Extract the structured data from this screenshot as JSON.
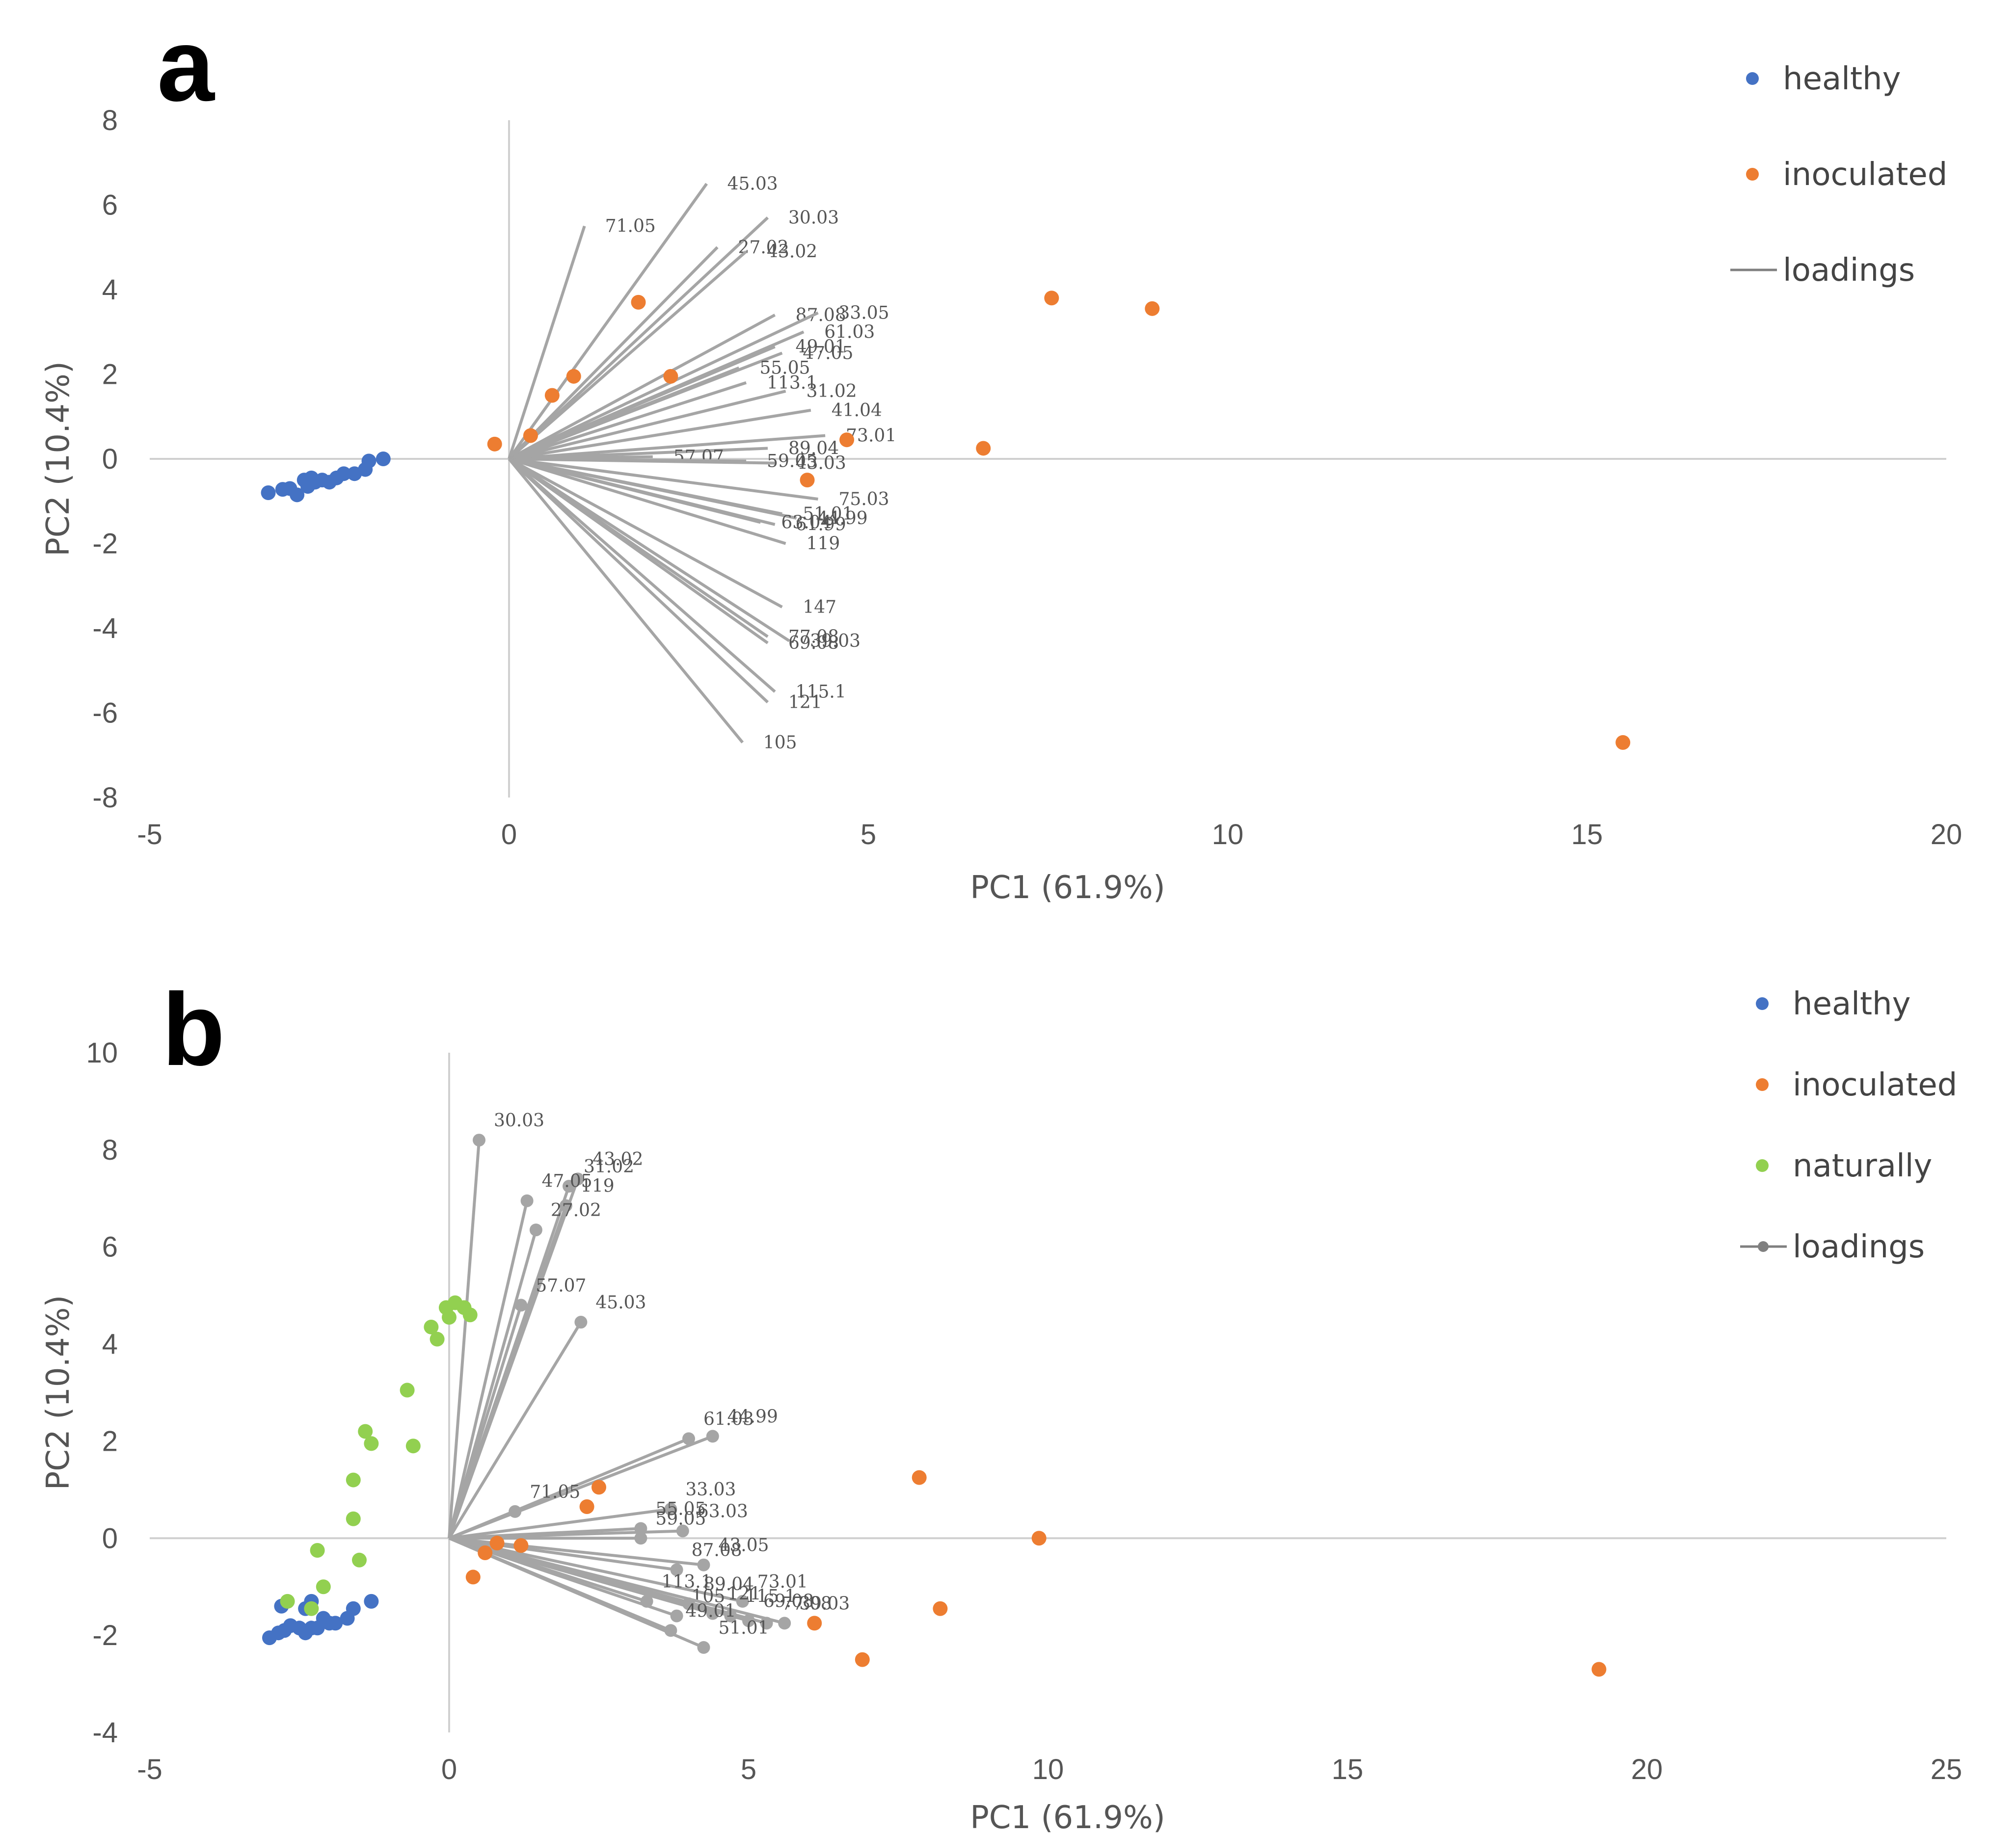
{
  "chart_data": [
    {
      "type": "scatter",
      "panel": "a",
      "xlabel": "PC1 (61.9%)",
      "ylabel": "PC2 (10.4%)",
      "xlim": [
        -5,
        20
      ],
      "ylim": [
        -8,
        8
      ],
      "xticks": [
        -5,
        0,
        5,
        10,
        15,
        20
      ],
      "yticks": [
        -8,
        -6,
        -4,
        -2,
        0,
        2,
        4,
        6,
        8
      ],
      "legend": {
        "placement": "top-right",
        "entries": [
          "healthy",
          "inoculated",
          "loadings"
        ]
      },
      "colors": {
        "healthy": "#4472C4",
        "inoculated": "#ED7D31",
        "loadings": "#A5A5A5"
      },
      "series": [
        {
          "name": "healthy",
          "points": [
            [
              -3.35,
              -0.8
            ],
            [
              -3.15,
              -0.72
            ],
            [
              -3.05,
              -0.7
            ],
            [
              -2.95,
              -0.85
            ],
            [
              -2.85,
              -0.5
            ],
            [
              -2.8,
              -0.65
            ],
            [
              -2.75,
              -0.45
            ],
            [
              -2.7,
              -0.55
            ],
            [
              -2.6,
              -0.5
            ],
            [
              -2.5,
              -0.55
            ],
            [
              -2.4,
              -0.45
            ],
            [
              -2.3,
              -0.35
            ],
            [
              -2.15,
              -0.35
            ],
            [
              -2.0,
              -0.25
            ],
            [
              -1.95,
              -0.05
            ],
            [
              -1.75,
              0.0
            ]
          ]
        },
        {
          "name": "inoculated",
          "points": [
            [
              -0.2,
              0.35
            ],
            [
              0.3,
              0.55
            ],
            [
              0.6,
              1.5
            ],
            [
              0.9,
              1.95
            ],
            [
              1.8,
              3.7
            ],
            [
              2.25,
              1.95
            ],
            [
              4.15,
              -0.5
            ],
            [
              4.7,
              0.45
            ],
            [
              6.6,
              0.25
            ],
            [
              7.55,
              3.8
            ],
            [
              8.95,
              3.55
            ],
            [
              15.5,
              -6.7
            ]
          ]
        },
        {
          "name": "loadings",
          "vectors": [
            {
              "label": "45.03",
              "x": 2.75,
              "y": 6.5
            },
            {
              "label": "30.03",
              "x": 3.6,
              "y": 5.7
            },
            {
              "label": "71.05",
              "x": 1.05,
              "y": 5.5
            },
            {
              "label": "27.02",
              "x": 2.9,
              "y": 5.0
            },
            {
              "label": "43.02",
              "x": 3.3,
              "y": 4.9
            },
            {
              "label": "87.08",
              "x": 3.7,
              "y": 3.4
            },
            {
              "label": "33.05",
              "x": 4.3,
              "y": 3.45
            },
            {
              "label": "61.03",
              "x": 4.1,
              "y": 3.0
            },
            {
              "label": "49.01",
              "x": 3.7,
              "y": 2.65
            },
            {
              "label": "47.05",
              "x": 3.8,
              "y": 2.5
            },
            {
              "label": "55.05",
              "x": 3.2,
              "y": 2.15
            },
            {
              "label": "113.1",
              "x": 3.3,
              "y": 1.8
            },
            {
              "label": "31.02",
              "x": 3.85,
              "y": 1.6
            },
            {
              "label": "41.04",
              "x": 4.2,
              "y": 1.15
            },
            {
              "label": "73.01",
              "x": 4.4,
              "y": 0.55
            },
            {
              "label": "89.04",
              "x": 3.6,
              "y": 0.25
            },
            {
              "label": "57.07",
              "x": 2.0,
              "y": 0.05
            },
            {
              "label": "59.05",
              "x": 3.3,
              "y": -0.05
            },
            {
              "label": "43.03",
              "x": 3.7,
              "y": -0.1
            },
            {
              "label": "75.03",
              "x": 4.3,
              "y": -0.95
            },
            {
              "label": "51.01",
              "x": 3.8,
              "y": -1.3
            },
            {
              "label": "44.99",
              "x": 4.0,
              "y": -1.4
            },
            {
              "label": "63.04",
              "x": 3.5,
              "y": -1.5
            },
            {
              "label": "61.99",
              "x": 3.7,
              "y": -1.55
            },
            {
              "label": "119",
              "x": 3.85,
              "y": -2.0
            },
            {
              "label": "147",
              "x": 3.8,
              "y": -3.5
            },
            {
              "label": "77.08",
              "x": 3.6,
              "y": -4.2
            },
            {
              "label": "69.08",
              "x": 3.6,
              "y": -4.35
            },
            {
              "label": "39.03",
              "x": 3.9,
              "y": -4.3
            },
            {
              "label": "115.1",
              "x": 3.7,
              "y": -5.5
            },
            {
              "label": "121",
              "x": 3.6,
              "y": -5.75
            },
            {
              "label": "105",
              "x": 3.25,
              "y": -6.7
            }
          ]
        }
      ]
    },
    {
      "type": "scatter",
      "panel": "b",
      "xlabel": "PC1 (61.9%)",
      "ylabel": "PC2 (10.4%)",
      "xlim": [
        -5,
        25
      ],
      "ylim": [
        -4,
        10
      ],
      "xticks": [
        -5,
        0,
        5,
        10,
        15,
        20,
        25
      ],
      "yticks": [
        -4,
        -2,
        0,
        2,
        4,
        6,
        8,
        10
      ],
      "legend": {
        "placement": "top-right",
        "entries": [
          "healthy",
          "inoculated",
          "naturally",
          "loadings"
        ]
      },
      "colors": {
        "healthy": "#4472C4",
        "inoculated": "#ED7D31",
        "naturally": "#92D050",
        "loadings": "#A5A5A5"
      },
      "series": [
        {
          "name": "healthy",
          "points": [
            [
              -3.0,
              -2.05
            ],
            [
              -2.85,
              -1.95
            ],
            [
              -2.75,
              -1.9
            ],
            [
              -2.65,
              -1.8
            ],
            [
              -2.5,
              -1.85
            ],
            [
              -2.4,
              -1.95
            ],
            [
              -2.3,
              -1.85
            ],
            [
              -2.2,
              -1.85
            ],
            [
              -2.1,
              -1.65
            ],
            [
              -2.0,
              -1.75
            ],
            [
              -1.9,
              -1.75
            ],
            [
              -1.7,
              -1.65
            ],
            [
              -1.6,
              -1.45
            ],
            [
              -1.3,
              -1.3
            ],
            [
              -2.8,
              -1.4
            ],
            [
              -2.3,
              -1.3
            ],
            [
              -2.4,
              -1.45
            ]
          ]
        },
        {
          "name": "inoculated",
          "points": [
            [
              0.4,
              -0.8
            ],
            [
              0.6,
              -0.3
            ],
            [
              0.8,
              -0.1
            ],
            [
              1.2,
              -0.15
            ],
            [
              2.3,
              0.65
            ],
            [
              2.5,
              1.05
            ],
            [
              6.1,
              -1.75
            ],
            [
              6.9,
              -2.5
            ],
            [
              7.85,
              1.25
            ],
            [
              8.2,
              -1.45
            ],
            [
              9.85,
              0.0
            ],
            [
              19.2,
              -2.7
            ]
          ]
        },
        {
          "name": "naturally",
          "points": [
            [
              -2.7,
              -1.3
            ],
            [
              -2.3,
              -1.45
            ],
            [
              -2.1,
              -1.0
            ],
            [
              -2.2,
              -0.25
            ],
            [
              -1.5,
              -0.45
            ],
            [
              -1.6,
              0.4
            ],
            [
              -1.6,
              1.2
            ],
            [
              -1.4,
              2.2
            ],
            [
              -1.3,
              1.95
            ],
            [
              -0.7,
              3.05
            ],
            [
              -0.6,
              1.9
            ],
            [
              -0.3,
              4.35
            ],
            [
              -0.2,
              4.1
            ],
            [
              -0.05,
              4.75
            ],
            [
              0.0,
              4.55
            ],
            [
              0.1,
              4.85
            ],
            [
              0.25,
              4.75
            ],
            [
              0.35,
              4.6
            ]
          ]
        },
        {
          "name": "loadings",
          "vectors": [
            {
              "label": "30.03",
              "x": 0.5,
              "y": 8.2
            },
            {
              "label": "43.02",
              "x": 2.15,
              "y": 7.4
            },
            {
              "label": "31.02",
              "x": 2.0,
              "y": 7.25
            },
            {
              "label": "47.05",
              "x": 1.3,
              "y": 6.95
            },
            {
              "label": "119",
              "x": 1.95,
              "y": 6.85
            },
            {
              "label": "27.02",
              "x": 1.45,
              "y": 6.35
            },
            {
              "label": "57.07",
              "x": 1.2,
              "y": 4.8
            },
            {
              "label": "45.03",
              "x": 2.2,
              "y": 4.45
            },
            {
              "label": "61.03",
              "x": 4.0,
              "y": 2.05
            },
            {
              "label": "44.99",
              "x": 4.4,
              "y": 2.1
            },
            {
              "label": "33.03",
              "x": 3.7,
              "y": 0.6
            },
            {
              "label": "71.05",
              "x": 1.1,
              "y": 0.55
            },
            {
              "label": "55.05",
              "x": 3.2,
              "y": 0.2
            },
            {
              "label": "63.03",
              "x": 3.9,
              "y": 0.15
            },
            {
              "label": "59.05",
              "x": 3.2,
              "y": 0.0
            },
            {
              "label": "43.05",
              "x": 4.25,
              "y": -0.55
            },
            {
              "label": "87.08",
              "x": 3.8,
              "y": -0.65
            },
            {
              "label": "73.01",
              "x": 4.9,
              "y": -1.3
            },
            {
              "label": "113.1",
              "x": 3.3,
              "y": -1.3
            },
            {
              "label": "89.04",
              "x": 4.0,
              "y": -1.35
            },
            {
              "label": "105",
              "x": 3.8,
              "y": -1.6
            },
            {
              "label": "121",
              "x": 4.4,
              "y": -1.55
            },
            {
              "label": "115.1",
              "x": 4.7,
              "y": -1.6
            },
            {
              "label": "69.08",
              "x": 5.0,
              "y": -1.7
            },
            {
              "label": "77.08",
              "x": 5.3,
              "y": -1.75
            },
            {
              "label": "39.03",
              "x": 5.6,
              "y": -1.75
            },
            {
              "label": "49.01",
              "x": 3.7,
              "y": -1.9
            },
            {
              "label": "51.01",
              "x": 4.25,
              "y": -2.25
            }
          ]
        }
      ]
    }
  ]
}
